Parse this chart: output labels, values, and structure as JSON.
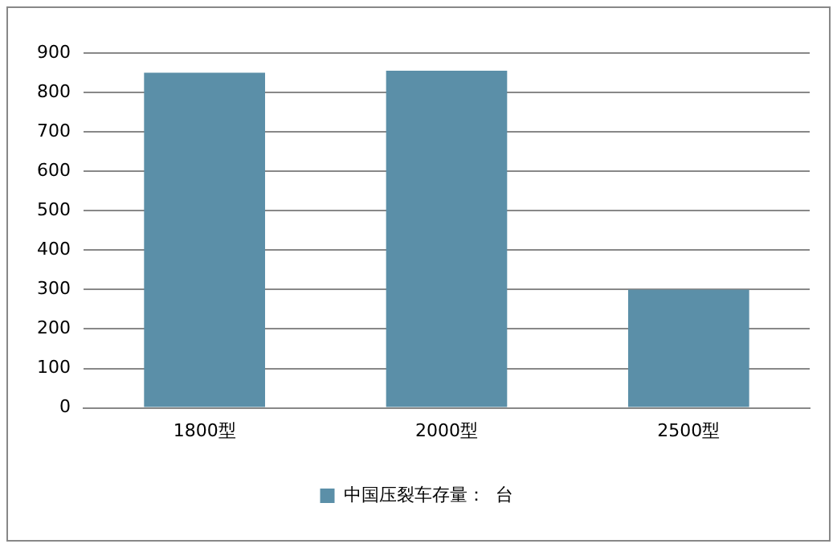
{
  "chart_data": {
    "type": "bar",
    "categories": [
      "1800型",
      "2000型",
      "2500型"
    ],
    "series": [
      {
        "name": "中国压裂车存量：  台",
        "color": "#5b8fa8",
        "values": [
          850,
          855,
          300
        ]
      }
    ],
    "ylim": [
      0,
      900
    ],
    "yticks": [
      0,
      100,
      200,
      300,
      400,
      500,
      600,
      700,
      800,
      900
    ],
    "grid": "y",
    "legend": "bottom"
  }
}
